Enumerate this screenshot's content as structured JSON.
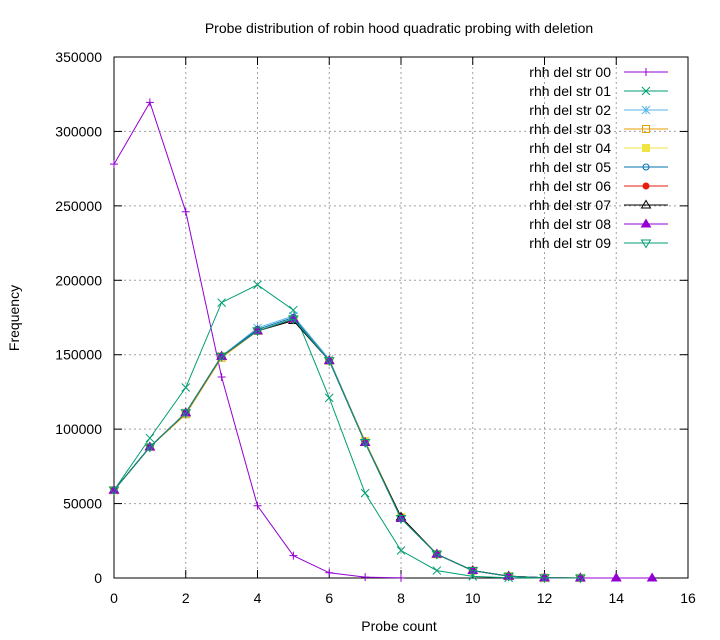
{
  "chart_data": {
    "type": "line",
    "title": "Probe distribution of robin hood quadratic probing with deletion",
    "xlabel": "Probe count",
    "ylabel": "Frequency",
    "xlim": [
      0,
      16
    ],
    "ylim": [
      0,
      350000
    ],
    "xticks": [
      "0",
      "2",
      "4",
      "6",
      "8",
      "10",
      "12",
      "14",
      "16"
    ],
    "yticks": [
      "0",
      "50000",
      "100000",
      "150000",
      "200000",
      "250000",
      "300000",
      "350000"
    ],
    "grid": true,
    "legend_position": "top-right",
    "series": [
      {
        "name": "rhh del str 00",
        "color": "#9400d3",
        "marker": "plus",
        "x": [
          0,
          1,
          2,
          3,
          4,
          5,
          6,
          7,
          8
        ],
        "values": [
          278000,
          319500,
          246000,
          135000,
          48500,
          15000,
          3500,
          600,
          100
        ]
      },
      {
        "name": "rhh del str 01",
        "color": "#009e73",
        "marker": "cross",
        "x": [
          0,
          1,
          2,
          3,
          4,
          5,
          6,
          7,
          8,
          9,
          10,
          11,
          12
        ],
        "values": [
          59000,
          94000,
          128000,
          185000,
          197000,
          180000,
          121000,
          57000,
          18500,
          5000,
          1100,
          150,
          20
        ]
      },
      {
        "name": "rhh del str 02",
        "color": "#56b4e9",
        "marker": "star",
        "x": [
          0,
          1,
          2,
          3,
          4,
          5,
          6,
          7,
          8,
          9,
          10,
          11,
          12,
          13
        ],
        "values": [
          59000,
          88000,
          111000,
          149000,
          168000,
          176000,
          147000,
          92000,
          41000,
          16000,
          5000,
          1300,
          200,
          30
        ]
      },
      {
        "name": "rhh del str 03",
        "color": "#e69f00",
        "marker": "box",
        "x": [
          0,
          1,
          2,
          3,
          4,
          5,
          6,
          7,
          8,
          9,
          10,
          11,
          12,
          13
        ],
        "values": [
          59000,
          88000,
          110000,
          148000,
          166000,
          174000,
          146000,
          92000,
          41000,
          16000,
          5000,
          1300,
          200,
          30
        ]
      },
      {
        "name": "rhh del str 04",
        "color": "#f0e442",
        "marker": "fbox",
        "x": [
          0,
          1,
          2,
          3,
          4,
          5,
          6,
          7,
          8,
          9,
          10,
          11,
          12,
          13
        ],
        "values": [
          59000,
          88000,
          111000,
          149000,
          166000,
          174000,
          146000,
          92000,
          41000,
          16000,
          5000,
          1300,
          200,
          30
        ]
      },
      {
        "name": "rhh del str 05",
        "color": "#0072b2",
        "marker": "circle",
        "x": [
          0,
          1,
          2,
          3,
          4,
          5,
          6,
          7,
          8,
          9,
          10,
          11,
          12,
          13
        ],
        "values": [
          59000,
          88000,
          111000,
          149000,
          167000,
          175000,
          146000,
          91000,
          40000,
          16000,
          5000,
          1200,
          200,
          30
        ]
      },
      {
        "name": "rhh del str 06",
        "color": "#e51e10",
        "marker": "fcircle",
        "x": [
          0,
          1,
          2,
          3,
          4,
          5,
          6,
          7,
          8,
          9,
          10,
          11,
          12,
          13
        ],
        "values": [
          59000,
          88000,
          111000,
          149000,
          166000,
          173000,
          146000,
          91000,
          41000,
          16000,
          5000,
          1300,
          200,
          30
        ]
      },
      {
        "name": "rhh del str 07",
        "color": "#000000",
        "marker": "triangle",
        "x": [
          0,
          1,
          2,
          3,
          4,
          5,
          6,
          7,
          8,
          9,
          10,
          11,
          12,
          13,
          14
        ],
        "values": [
          59000,
          88000,
          111000,
          149000,
          166000,
          173000,
          146000,
          91000,
          41000,
          16000,
          5000,
          1300,
          200,
          30,
          5
        ]
      },
      {
        "name": "rhh del str 08",
        "color": "#9400d3",
        "marker": "ftriangle",
        "x": [
          0,
          1,
          2,
          3,
          4,
          5,
          6,
          7,
          8,
          9,
          10,
          11,
          12,
          13,
          14,
          15
        ],
        "values": [
          59000,
          88000,
          111000,
          149000,
          166000,
          174000,
          146000,
          91000,
          40000,
          16000,
          5000,
          1200,
          200,
          30,
          5,
          1
        ]
      },
      {
        "name": "rhh del str 09",
        "color": "#009e73",
        "marker": "dtriangle",
        "x": [
          0,
          1,
          2,
          3,
          4,
          5,
          6,
          7,
          8,
          9,
          10,
          11,
          12,
          13
        ],
        "values": [
          59000,
          88000,
          111000,
          149000,
          166000,
          174000,
          146000,
          91000,
          40000,
          16000,
          5000,
          1200,
          200,
          30
        ]
      }
    ]
  }
}
